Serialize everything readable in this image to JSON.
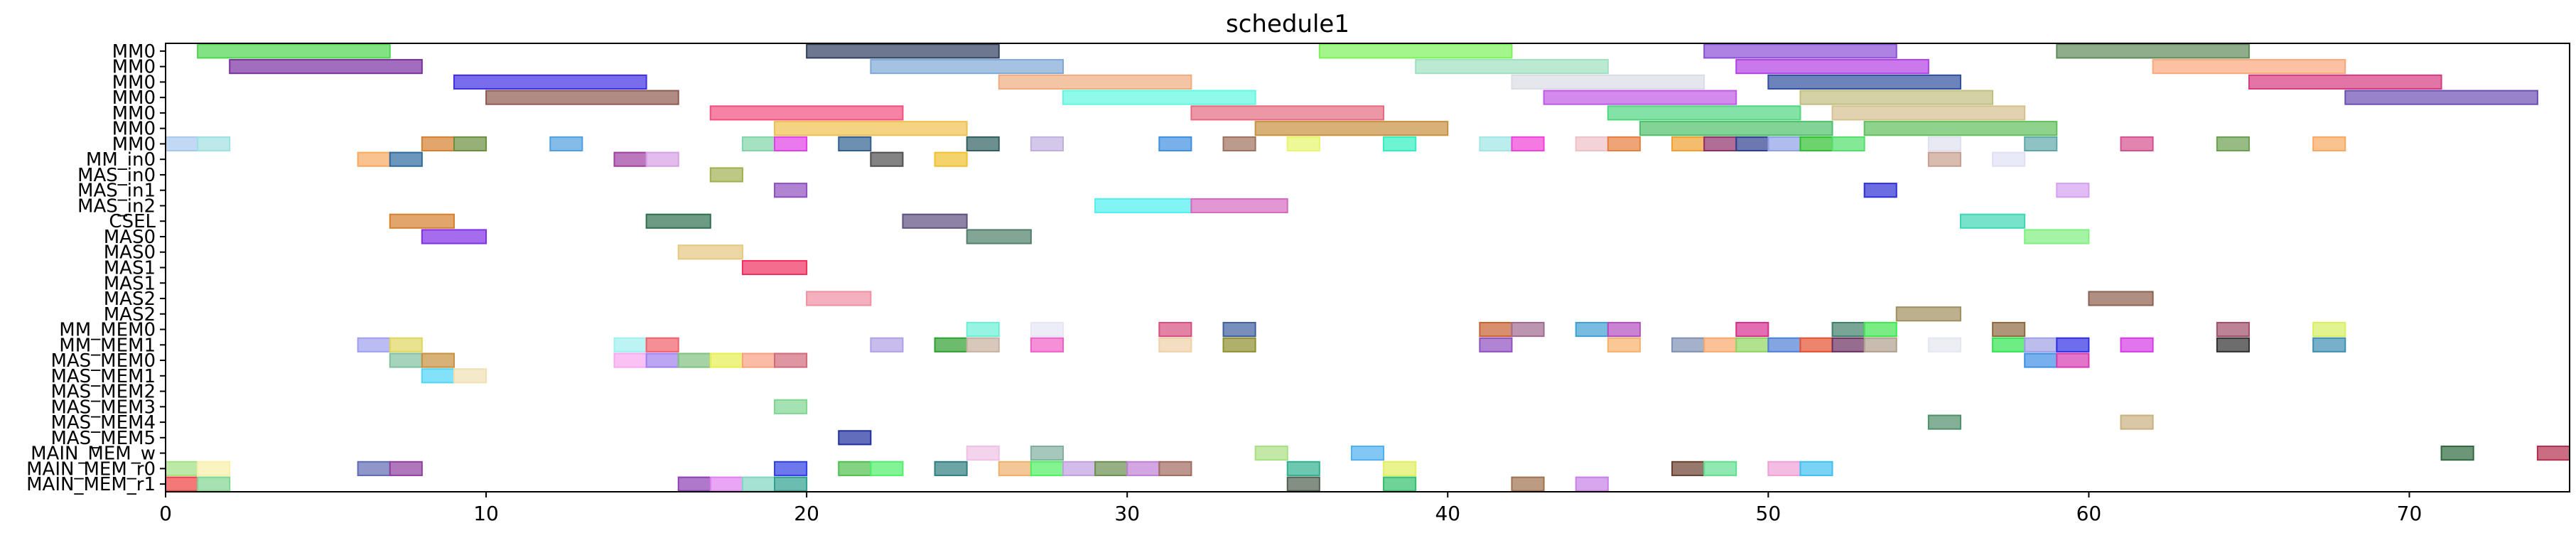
{
  "chart_data": {
    "type": "gantt",
    "title": "schedule1",
    "xlabel": "",
    "ylabel": "",
    "xlim": [
      0,
      75
    ],
    "x_ticks": [
      0,
      10,
      20,
      30,
      40,
      50,
      60,
      70
    ],
    "grid": false,
    "rows": [
      "MM0",
      "MM0",
      "MM0",
      "MM0",
      "MM0",
      "MM0",
      "MM0",
      "MM_in0",
      "MAS_in0",
      "MAS_in1",
      "MAS_in2",
      "CSEL",
      "MAS0",
      "MAS0",
      "MAS1",
      "MAS1",
      "MAS2",
      "MAS2",
      "MM_MEM0",
      "MM_MEM1",
      "MAS_MEM0",
      "MAS_MEM1",
      "MAS_MEM2",
      "MAS_MEM3",
      "MAS_MEM4",
      "MAS_MEM5",
      "MAIN_MEM_w",
      "MAIN_MEM_r0",
      "MAIN_MEM_r1"
    ],
    "tasks": [
      {
        "row": 0,
        "start": 1,
        "end": 7,
        "color": "#4fd64f"
      },
      {
        "row": 0,
        "start": 20,
        "end": 26,
        "color": "#2f3f5f"
      },
      {
        "row": 0,
        "start": 36,
        "end": 42,
        "color": "#7cf25a"
      },
      {
        "row": 0,
        "start": 48,
        "end": 54,
        "color": "#8a4fd6"
      },
      {
        "row": 0,
        "start": 59,
        "end": 65,
        "color": "#5f8a5a"
      },
      {
        "row": 1,
        "start": 2,
        "end": 8,
        "color": "#7a2f9f"
      },
      {
        "row": 1,
        "start": 22,
        "end": 28,
        "color": "#7fa8d6"
      },
      {
        "row": 1,
        "start": 39,
        "end": 45,
        "color": "#9fe0bf"
      },
      {
        "row": 1,
        "start": 49,
        "end": 55,
        "color": "#b340e6"
      },
      {
        "row": 1,
        "start": 62,
        "end": 68,
        "color": "#f8a87a"
      },
      {
        "row": 2,
        "start": 9,
        "end": 15,
        "color": "#3f2fe6"
      },
      {
        "row": 2,
        "start": 26,
        "end": 32,
        "color": "#f0ad7f"
      },
      {
        "row": 2,
        "start": 42,
        "end": 48,
        "color": "#dcdce6"
      },
      {
        "row": 2,
        "start": 50,
        "end": 56,
        "color": "#2f4f9f"
      },
      {
        "row": 2,
        "start": 65,
        "end": 71,
        "color": "#d63a80"
      },
      {
        "row": 3,
        "start": 10,
        "end": 16,
        "color": "#8f5a4f"
      },
      {
        "row": 3,
        "start": 28,
        "end": 34,
        "color": "#5ff8e0"
      },
      {
        "row": 3,
        "start": 43,
        "end": 49,
        "color": "#c059e6"
      },
      {
        "row": 3,
        "start": 51,
        "end": 57,
        "color": "#bfbf7f"
      },
      {
        "row": 3,
        "start": 68,
        "end": 74,
        "color": "#6a4fb3"
      },
      {
        "row": 4,
        "start": 17,
        "end": 23,
        "color": "#f24f7f"
      },
      {
        "row": 4,
        "start": 32,
        "end": 38,
        "color": "#e66a80"
      },
      {
        "row": 4,
        "start": 45,
        "end": 51,
        "color": "#4fd67f"
      },
      {
        "row": 4,
        "start": 52,
        "end": 58,
        "color": "#d6c08f"
      },
      {
        "row": 5,
        "start": 19,
        "end": 25,
        "color": "#f0c04f"
      },
      {
        "row": 5,
        "start": 34,
        "end": 40,
        "color": "#c8903f"
      },
      {
        "row": 5,
        "start": 46,
        "end": 52,
        "color": "#4fbf6a"
      },
      {
        "row": 5,
        "start": 53,
        "end": 59,
        "color": "#5fbf5a"
      },
      {
        "row": 6,
        "start": 0,
        "end": 1,
        "color": "#a8c8f0"
      },
      {
        "row": 6,
        "start": 1,
        "end": 2,
        "color": "#9fe0e0"
      },
      {
        "row": 6,
        "start": 8,
        "end": 9,
        "color": "#d6802f"
      },
      {
        "row": 6,
        "start": 9,
        "end": 10,
        "color": "#6a8f3f"
      },
      {
        "row": 6,
        "start": 12,
        "end": 13,
        "color": "#4fa0e0"
      },
      {
        "row": 6,
        "start": 18,
        "end": 19,
        "color": "#7fd6a8"
      },
      {
        "row": 6,
        "start": 19,
        "end": 20,
        "color": "#e040e6"
      },
      {
        "row": 6,
        "start": 21,
        "end": 22,
        "color": "#2f5f8f"
      },
      {
        "row": 6,
        "start": 25,
        "end": 26,
        "color": "#2f5f5f"
      },
      {
        "row": 6,
        "start": 27,
        "end": 28,
        "color": "#c0b0e0"
      },
      {
        "row": 6,
        "start": 31,
        "end": 32,
        "color": "#3f8fe0"
      },
      {
        "row": 6,
        "start": 33,
        "end": 34,
        "color": "#a0705f"
      },
      {
        "row": 6,
        "start": 35,
        "end": 36,
        "color": "#e6f56a"
      },
      {
        "row": 6,
        "start": 38,
        "end": 39,
        "color": "#2ff0c0"
      },
      {
        "row": 6,
        "start": 41,
        "end": 42,
        "color": "#a0e6e6"
      },
      {
        "row": 6,
        "start": 42,
        "end": 43,
        "color": "#f040d6"
      },
      {
        "row": 6,
        "start": 44,
        "end": 45,
        "color": "#f0c0c8"
      },
      {
        "row": 6,
        "start": 45,
        "end": 46,
        "color": "#e67f3f"
      },
      {
        "row": 6,
        "start": 47,
        "end": 48,
        "color": "#f0a02f"
      },
      {
        "row": 6,
        "start": 48,
        "end": 49,
        "color": "#8f2f6a"
      },
      {
        "row": 6,
        "start": 49,
        "end": 50,
        "color": "#2f3f8f"
      },
      {
        "row": 6,
        "start": 50,
        "end": 51,
        "color": "#8fa0e6"
      },
      {
        "row": 6,
        "start": 51,
        "end": 52,
        "color": "#2fc02f"
      },
      {
        "row": 6,
        "start": 52,
        "end": 53,
        "color": "#4fe06a"
      },
      {
        "row": 6,
        "start": 55,
        "end": 56,
        "color": "#e0e0f0"
      },
      {
        "row": 6,
        "start": 58,
        "end": 59,
        "color": "#5fa8a8"
      },
      {
        "row": 6,
        "start": 61,
        "end": 62,
        "color": "#d6508f"
      },
      {
        "row": 6,
        "start": 64,
        "end": 65,
        "color": "#6a9f4f"
      },
      {
        "row": 6,
        "start": 67,
        "end": 68,
        "color": "#f8a85f"
      },
      {
        "row": 7,
        "start": 6,
        "end": 7,
        "color": "#f8a85f"
      },
      {
        "row": 7,
        "start": 7,
        "end": 8,
        "color": "#2f6a9f"
      },
      {
        "row": 7,
        "start": 14,
        "end": 15,
        "color": "#9f3f9f"
      },
      {
        "row": 7,
        "start": 15,
        "end": 16,
        "color": "#d6a0e6"
      },
      {
        "row": 7,
        "start": 22,
        "end": 23,
        "color": "#4f4f4f"
      },
      {
        "row": 7,
        "start": 24,
        "end": 25,
        "color": "#f0c02f"
      },
      {
        "row": 7,
        "start": 55,
        "end": 56,
        "color": "#c89f8f"
      },
      {
        "row": 7,
        "start": 57,
        "end": 58,
        "color": "#e0e0f5"
      },
      {
        "row": 8,
        "start": 17,
        "end": 18,
        "color": "#a0b04f"
      },
      {
        "row": 9,
        "start": 19,
        "end": 20,
        "color": "#8f4fc0"
      },
      {
        "row": 9,
        "start": 53,
        "end": 54,
        "color": "#2f2fd6"
      },
      {
        "row": 9,
        "start": 59,
        "end": 60,
        "color": "#d69ff0"
      },
      {
        "row": 10,
        "start": 29,
        "end": 32,
        "color": "#4ff0f0"
      },
      {
        "row": 10,
        "start": 32,
        "end": 35,
        "color": "#d66ac0"
      },
      {
        "row": 11,
        "start": 7,
        "end": 9,
        "color": "#d6802f"
      },
      {
        "row": 11,
        "start": 15,
        "end": 17,
        "color": "#2f6f4f"
      },
      {
        "row": 11,
        "start": 23,
        "end": 25,
        "color": "#5f4f7f"
      },
      {
        "row": 11,
        "start": 56,
        "end": 58,
        "color": "#3fd6b3"
      },
      {
        "row": 12,
        "start": 8,
        "end": 10,
        "color": "#7f2fe6"
      },
      {
        "row": 12,
        "start": 25,
        "end": 27,
        "color": "#4f7f6a"
      },
      {
        "row": 12,
        "start": 58,
        "end": 60,
        "color": "#7ff07f"
      },
      {
        "row": 13,
        "start": 16,
        "end": 18,
        "color": "#e6c87f"
      },
      {
        "row": 14,
        "start": 18,
        "end": 20,
        "color": "#f02f5f"
      },
      {
        "row": 16,
        "start": 20,
        "end": 22,
        "color": "#f08f9f"
      },
      {
        "row": 16,
        "start": 60,
        "end": 62,
        "color": "#8f5f4f"
      },
      {
        "row": 17,
        "start": 54,
        "end": 56,
        "color": "#9f8f5f"
      },
      {
        "row": 18,
        "start": 25,
        "end": 26,
        "color": "#6af0d6"
      },
      {
        "row": 18,
        "start": 27,
        "end": 28,
        "color": "#e6e6f5"
      },
      {
        "row": 18,
        "start": 31,
        "end": 32,
        "color": "#d64f80"
      },
      {
        "row": 18,
        "start": 33,
        "end": 34,
        "color": "#3f5f9f"
      },
      {
        "row": 18,
        "start": 41,
        "end": 42,
        "color": "#c8602f"
      },
      {
        "row": 18,
        "start": 42,
        "end": 43,
        "color": "#a06a8f"
      },
      {
        "row": 18,
        "start": 44,
        "end": 45,
        "color": "#3fa0d6"
      },
      {
        "row": 18,
        "start": 45,
        "end": 46,
        "color": "#b34fc0"
      },
      {
        "row": 18,
        "start": 49,
        "end": 50,
        "color": "#d62f8f"
      },
      {
        "row": 18,
        "start": 52,
        "end": 53,
        "color": "#3f7f6a"
      },
      {
        "row": 18,
        "start": 53,
        "end": 54,
        "color": "#3fe64f"
      },
      {
        "row": 18,
        "start": 57,
        "end": 58,
        "color": "#8f6a3f"
      },
      {
        "row": 18,
        "start": 64,
        "end": 65,
        "color": "#9f4f6a"
      },
      {
        "row": 18,
        "start": 67,
        "end": 68,
        "color": "#d6f05f"
      },
      {
        "row": 19,
        "start": 6,
        "end": 7,
        "color": "#9f9ff0"
      },
      {
        "row": 19,
        "start": 7,
        "end": 8,
        "color": "#e0d65f"
      },
      {
        "row": 19,
        "start": 14,
        "end": 15,
        "color": "#a0f0f0"
      },
      {
        "row": 19,
        "start": 15,
        "end": 16,
        "color": "#f05f6a"
      },
      {
        "row": 19,
        "start": 22,
        "end": 23,
        "color": "#b0a0e6"
      },
      {
        "row": 19,
        "start": 24,
        "end": 25,
        "color": "#2fa02f"
      },
      {
        "row": 19,
        "start": 25,
        "end": 26,
        "color": "#c8b0a0"
      },
      {
        "row": 19,
        "start": 27,
        "end": 28,
        "color": "#f05fc8"
      },
      {
        "row": 19,
        "start": 31,
        "end": 32,
        "color": "#f0d0a8"
      },
      {
        "row": 19,
        "start": 33,
        "end": 34,
        "color": "#8f8f2f"
      },
      {
        "row": 19,
        "start": 41,
        "end": 42,
        "color": "#8f4fc0"
      },
      {
        "row": 19,
        "start": 45,
        "end": 46,
        "color": "#f8b06a"
      },
      {
        "row": 19,
        "start": 47,
        "end": 48,
        "color": "#7f90b3"
      },
      {
        "row": 19,
        "start": 48,
        "end": 49,
        "color": "#f8a86a"
      },
      {
        "row": 19,
        "start": 49,
        "end": 50,
        "color": "#8fd65f"
      },
      {
        "row": 19,
        "start": 50,
        "end": 51,
        "color": "#4f80d6"
      },
      {
        "row": 19,
        "start": 51,
        "end": 52,
        "color": "#e6502f"
      },
      {
        "row": 19,
        "start": 52,
        "end": 53,
        "color": "#6a2f5f"
      },
      {
        "row": 19,
        "start": 53,
        "end": 54,
        "color": "#b09f8f"
      },
      {
        "row": 19,
        "start": 55,
        "end": 56,
        "color": "#e6e6f0"
      },
      {
        "row": 19,
        "start": 57,
        "end": 58,
        "color": "#2fe64f"
      },
      {
        "row": 19,
        "start": 58,
        "end": 59,
        "color": "#a0a0e6"
      },
      {
        "row": 19,
        "start": 59,
        "end": 60,
        "color": "#2f2fe6"
      },
      {
        "row": 19,
        "start": 61,
        "end": 62,
        "color": "#d63ae6"
      },
      {
        "row": 19,
        "start": 64,
        "end": 65,
        "color": "#2f2f2f"
      },
      {
        "row": 19,
        "start": 67,
        "end": 68,
        "color": "#3f8fb3"
      },
      {
        "row": 20,
        "start": 7,
        "end": 8,
        "color": "#80c0a0"
      },
      {
        "row": 20,
        "start": 8,
        "end": 9,
        "color": "#c8903f"
      },
      {
        "row": 20,
        "start": 14,
        "end": 15,
        "color": "#f8a8f0"
      },
      {
        "row": 20,
        "start": 15,
        "end": 16,
        "color": "#a080f0"
      },
      {
        "row": 20,
        "start": 16,
        "end": 17,
        "color": "#80c080"
      },
      {
        "row": 20,
        "start": 17,
        "end": 18,
        "color": "#e6f04f"
      },
      {
        "row": 20,
        "start": 18,
        "end": 19,
        "color": "#f8a07f"
      },
      {
        "row": 20,
        "start": 19,
        "end": 20,
        "color": "#d06a7a"
      },
      {
        "row": 20,
        "start": 58,
        "end": 59,
        "color": "#3f8fe6"
      },
      {
        "row": 20,
        "start": 59,
        "end": 60,
        "color": "#d63ab3"
      },
      {
        "row": 21,
        "start": 8,
        "end": 9,
        "color": "#4fd6f8"
      },
      {
        "row": 21,
        "start": 9,
        "end": 10,
        "color": "#f0e0b0"
      },
      {
        "row": 23,
        "start": 19,
        "end": 20,
        "color": "#7fd690"
      },
      {
        "row": 24,
        "start": 55,
        "end": 56,
        "color": "#4f8f6a"
      },
      {
        "row": 24,
        "start": 61,
        "end": 62,
        "color": "#c8b07f"
      },
      {
        "row": 25,
        "start": 21,
        "end": 22,
        "color": "#1f2f9f"
      },
      {
        "row": 26,
        "start": 25,
        "end": 26,
        "color": "#f0c0e6"
      },
      {
        "row": 26,
        "start": 27,
        "end": 28,
        "color": "#80b09f"
      },
      {
        "row": 26,
        "start": 34,
        "end": 35,
        "color": "#a8e080"
      },
      {
        "row": 26,
        "start": 37,
        "end": 38,
        "color": "#4fb0f0"
      },
      {
        "row": 26,
        "start": 71,
        "end": 72,
        "color": "#2f6a3f"
      },
      {
        "row": 26,
        "start": 74,
        "end": 75,
        "color": "#b32f4f"
      },
      {
        "row": 27,
        "start": 0,
        "end": 1,
        "color": "#a0e080"
      },
      {
        "row": 27,
        "start": 1,
        "end": 2,
        "color": "#f8f0a8"
      },
      {
        "row": 27,
        "start": 6,
        "end": 7,
        "color": "#5f6ab3"
      },
      {
        "row": 27,
        "start": 7,
        "end": 8,
        "color": "#8f3f9f"
      },
      {
        "row": 27,
        "start": 19,
        "end": 20,
        "color": "#2f3fe6"
      },
      {
        "row": 27,
        "start": 21,
        "end": 22,
        "color": "#4fc04f"
      },
      {
        "row": 27,
        "start": 22,
        "end": 23,
        "color": "#4ff06a"
      },
      {
        "row": 27,
        "start": 24,
        "end": 25,
        "color": "#2f7f80"
      },
      {
        "row": 27,
        "start": 26,
        "end": 27,
        "color": "#f0b06a"
      },
      {
        "row": 27,
        "start": 27,
        "end": 28,
        "color": "#4ff05f"
      },
      {
        "row": 27,
        "start": 28,
        "end": 29,
        "color": "#c0a0e0"
      },
      {
        "row": 27,
        "start": 29,
        "end": 30,
        "color": "#6a8f4f"
      },
      {
        "row": 27,
        "start": 30,
        "end": 31,
        "color": "#c080d6"
      },
      {
        "row": 27,
        "start": 31,
        "end": 32,
        "color": "#a06a5f"
      },
      {
        "row": 27,
        "start": 35,
        "end": 36,
        "color": "#2fb08f"
      },
      {
        "row": 27,
        "start": 38,
        "end": 39,
        "color": "#e0f05f"
      },
      {
        "row": 27,
        "start": 47,
        "end": 48,
        "color": "#6a3f2f"
      },
      {
        "row": 27,
        "start": 48,
        "end": 49,
        "color": "#5fe08f"
      },
      {
        "row": 27,
        "start": 50,
        "end": 51,
        "color": "#f0a0d6"
      },
      {
        "row": 27,
        "start": 51,
        "end": 52,
        "color": "#3fc0f0"
      },
      {
        "row": 28,
        "start": 0,
        "end": 1,
        "color": "#f03f3f"
      },
      {
        "row": 28,
        "start": 1,
        "end": 2,
        "color": "#80d690"
      },
      {
        "row": 28,
        "start": 16,
        "end": 17,
        "color": "#8f3fb3"
      },
      {
        "row": 28,
        "start": 17,
        "end": 18,
        "color": "#e080f0"
      },
      {
        "row": 28,
        "start": 18,
        "end": 19,
        "color": "#80d6c0"
      },
      {
        "row": 28,
        "start": 19,
        "end": 20,
        "color": "#2f9f8f"
      },
      {
        "row": 28,
        "start": 35,
        "end": 36,
        "color": "#4f5f4f"
      },
      {
        "row": 28,
        "start": 38,
        "end": 39,
        "color": "#2fc06a"
      },
      {
        "row": 28,
        "start": 42,
        "end": 43,
        "color": "#a0704f"
      },
      {
        "row": 28,
        "start": 44,
        "end": 45,
        "color": "#c880e6"
      }
    ]
  }
}
